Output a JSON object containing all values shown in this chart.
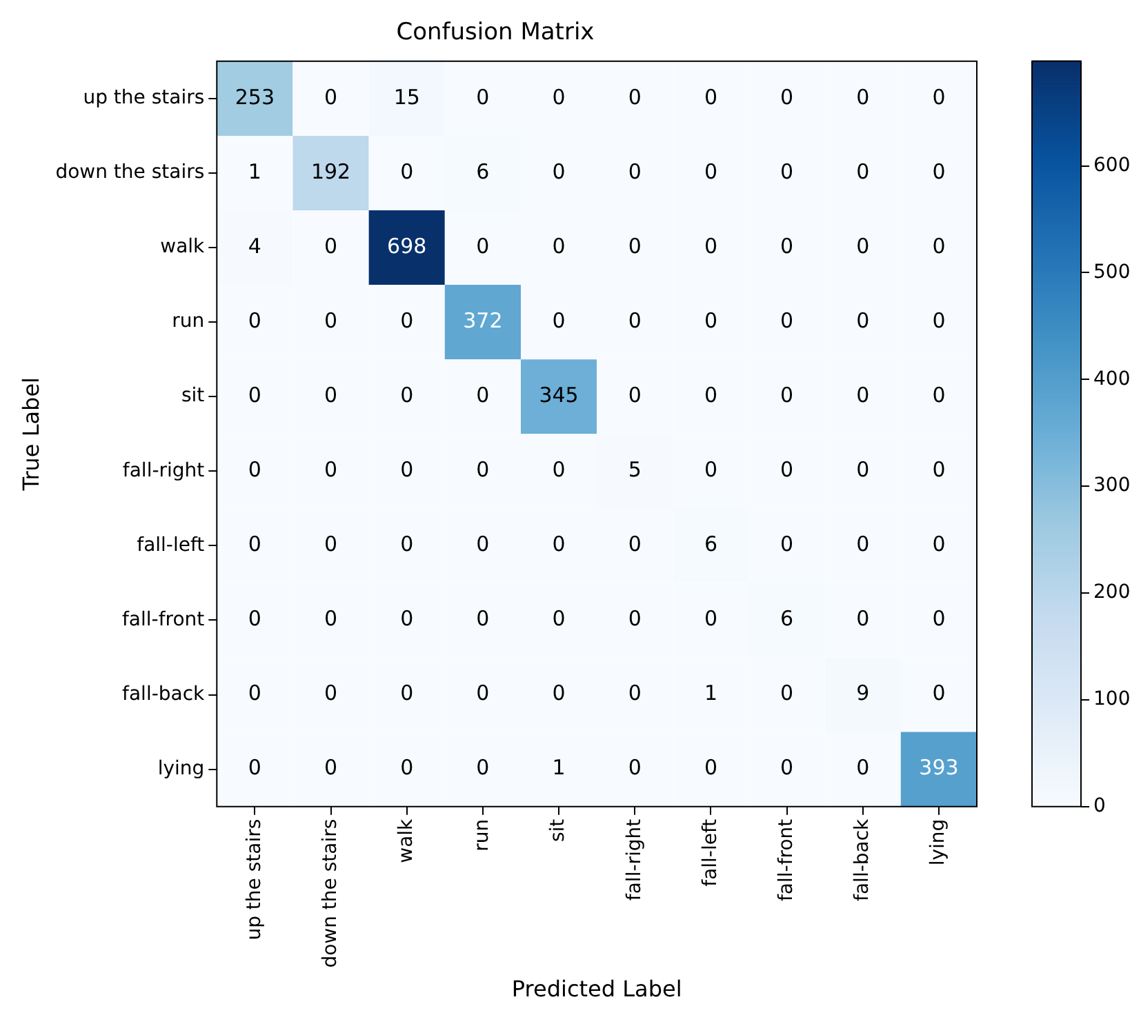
{
  "chart_data": {
    "type": "heatmap",
    "title": "Confusion Matrix",
    "xlabel": "Predicted Label",
    "ylabel": "True Label",
    "categories": [
      "up the stairs",
      "down the stairs",
      "walk",
      "run",
      "sit",
      "fall-right",
      "fall-left",
      "fall-front",
      "fall-back",
      "lying"
    ],
    "y_categories": [
      "up the stairs",
      "down the stairs",
      "walk",
      "run",
      "sit",
      "fall-right",
      "fall-left",
      "fall-front",
      "fall-back",
      "lying"
    ],
    "cells": [
      [
        253,
        0,
        15,
        0,
        0,
        0,
        0,
        0,
        0,
        0
      ],
      [
        1,
        192,
        0,
        6,
        0,
        0,
        0,
        0,
        0,
        0
      ],
      [
        4,
        0,
        698,
        0,
        0,
        0,
        0,
        0,
        0,
        0
      ],
      [
        0,
        0,
        0,
        372,
        0,
        0,
        0,
        0,
        0,
        0
      ],
      [
        0,
        0,
        0,
        0,
        345,
        0,
        0,
        0,
        0,
        0
      ],
      [
        0,
        0,
        0,
        0,
        0,
        5,
        0,
        0,
        0,
        0
      ],
      [
        0,
        0,
        0,
        0,
        0,
        0,
        6,
        0,
        0,
        0
      ],
      [
        0,
        0,
        0,
        0,
        0,
        0,
        0,
        6,
        0,
        0
      ],
      [
        0,
        0,
        0,
        0,
        0,
        0,
        1,
        0,
        9,
        0
      ],
      [
        0,
        0,
        0,
        0,
        1,
        0,
        0,
        0,
        0,
        393
      ]
    ],
    "data_labels": true,
    "grid": false,
    "clim": [
      0,
      698
    ],
    "cticks": [
      0,
      100,
      200,
      300,
      400,
      500,
      600
    ]
  }
}
